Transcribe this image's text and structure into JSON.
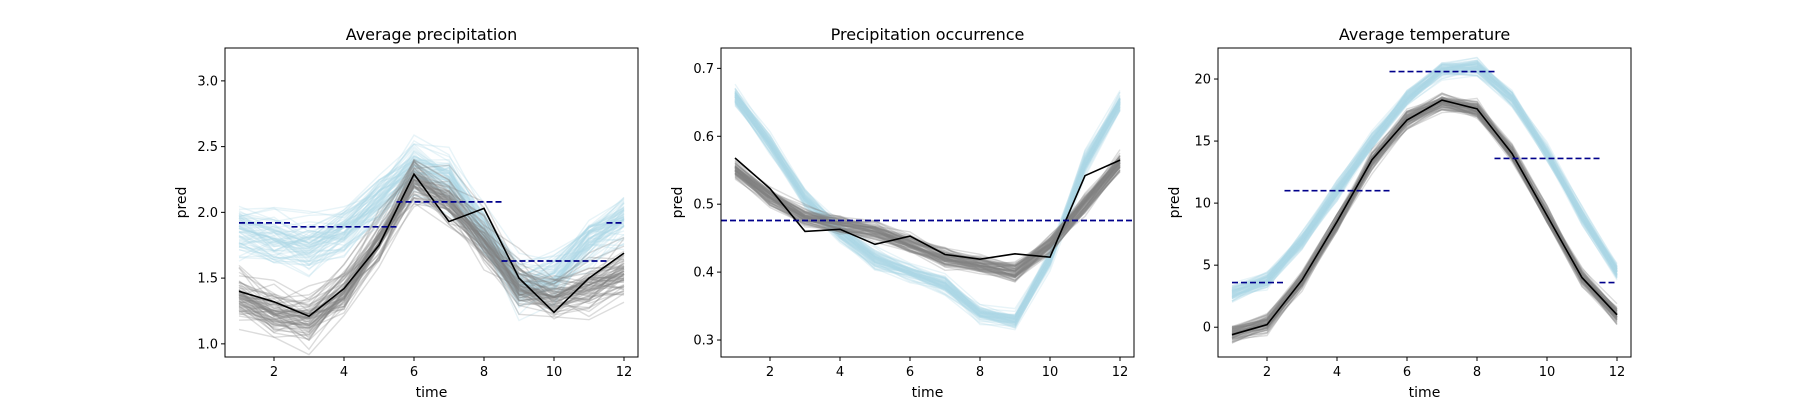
{
  "figure": {
    "background": "#ffffff"
  },
  "styles": {
    "ensemble_blue": "#add8e6",
    "ensemble_grey": "#808080",
    "observed_line": "#000000",
    "reference_dash": "#00008b"
  },
  "chart_data": [
    {
      "type": "line",
      "title": "Average precipitation",
      "xlabel": "time",
      "ylabel": "pred",
      "xlim": [
        0.6,
        12.4
      ],
      "ylim": [
        0.9,
        3.25
      ],
      "xticks": [
        2,
        4,
        6,
        8,
        10,
        12
      ],
      "yticks": [
        1.0,
        1.5,
        2.0,
        2.5,
        3.0
      ],
      "ytick_labels": [
        "1.0",
        "1.5",
        "2.0",
        "2.5",
        "3.0"
      ],
      "grid": false,
      "series": [
        {
          "role": "ensemble-light-blue",
          "color": "#add8e6",
          "x": [
            1,
            2,
            3,
            4,
            5,
            6,
            7,
            8,
            9,
            10,
            11,
            12
          ],
          "y": [
            1.88,
            1.8,
            1.75,
            1.85,
            2.1,
            2.35,
            2.25,
            1.85,
            1.45,
            1.5,
            1.8,
            1.95
          ]
        },
        {
          "role": "ensemble-grey",
          "color": "#808080",
          "x": [
            1,
            2,
            3,
            4,
            5,
            6,
            7,
            8,
            9,
            10,
            11,
            12
          ],
          "y": [
            1.38,
            1.25,
            1.2,
            1.4,
            1.8,
            2.25,
            2.1,
            1.8,
            1.45,
            1.35,
            1.45,
            1.55
          ]
        },
        {
          "role": "observed",
          "color": "#000000",
          "x": [
            1,
            2,
            3,
            4,
            5,
            6,
            7,
            8,
            9,
            10,
            11,
            12
          ],
          "y": [
            1.4,
            1.32,
            1.21,
            1.42,
            1.75,
            2.29,
            1.93,
            2.03,
            1.5,
            1.24,
            1.5,
            1.69
          ]
        }
      ],
      "reference_segments": [
        {
          "x": [
            1.0,
            2.5
          ],
          "y": 1.92
        },
        {
          "x": [
            2.5,
            5.5
          ],
          "y": 1.89
        },
        {
          "x": [
            5.5,
            8.5
          ],
          "y": 2.08
        },
        {
          "x": [
            8.5,
            11.5
          ],
          "y": 1.63
        },
        {
          "x": [
            11.5,
            12.0
          ],
          "y": 1.92
        }
      ]
    },
    {
      "type": "line",
      "title": "Precipitation occurrence",
      "xlabel": "time",
      "ylabel": "pred",
      "xlim": [
        0.6,
        12.4
      ],
      "ylim": [
        0.275,
        0.73
      ],
      "xticks": [
        2,
        4,
        6,
        8,
        10,
        12
      ],
      "yticks": [
        0.3,
        0.4,
        0.5,
        0.6,
        0.7
      ],
      "ytick_labels": [
        "0.3",
        "0.4",
        "0.5",
        "0.6",
        "0.7"
      ],
      "grid": false,
      "series": [
        {
          "role": "ensemble-light-blue",
          "color": "#add8e6",
          "x": [
            1,
            2,
            3,
            4,
            5,
            6,
            7,
            8,
            9,
            10,
            11,
            12
          ],
          "y": [
            0.66,
            0.59,
            0.51,
            0.46,
            0.42,
            0.4,
            0.38,
            0.34,
            0.33,
            0.42,
            0.56,
            0.65
          ]
        },
        {
          "role": "ensemble-grey",
          "color": "#808080",
          "x": [
            1,
            2,
            3,
            4,
            5,
            6,
            7,
            8,
            9,
            10,
            11,
            12
          ],
          "y": [
            0.55,
            0.51,
            0.48,
            0.47,
            0.46,
            0.44,
            0.42,
            0.41,
            0.4,
            0.44,
            0.5,
            0.56
          ]
        },
        {
          "role": "observed",
          "color": "#000000",
          "x": [
            1,
            2,
            3,
            4,
            5,
            6,
            7,
            8,
            9,
            10,
            11,
            12
          ],
          "y": [
            0.568,
            0.523,
            0.46,
            0.463,
            0.441,
            0.453,
            0.426,
            0.419,
            0.427,
            0.422,
            0.542,
            0.565
          ]
        }
      ],
      "reference_segments": [
        {
          "x": [
            0.6,
            12.4
          ],
          "y": 0.476
        }
      ]
    },
    {
      "type": "line",
      "title": "Average temperature",
      "xlabel": "time",
      "ylabel": "pred",
      "xlim": [
        0.6,
        12.4
      ],
      "ylim": [
        -2.4,
        22.5
      ],
      "xticks": [
        2,
        4,
        6,
        8,
        10,
        12
      ],
      "yticks": [
        0,
        5,
        10,
        15,
        20
      ],
      "ytick_labels": [
        "0",
        "5",
        "10",
        "15",
        "20"
      ],
      "grid": false,
      "series": [
        {
          "role": "ensemble-light-blue",
          "color": "#add8e6",
          "x": [
            1,
            2,
            3,
            4,
            5,
            6,
            7,
            8,
            9,
            10,
            11,
            12
          ],
          "y": [
            2.8,
            3.8,
            7.0,
            11.0,
            15.0,
            18.5,
            20.8,
            21.0,
            18.5,
            14.0,
            9.0,
            4.5
          ]
        },
        {
          "role": "ensemble-grey",
          "color": "#808080",
          "x": [
            1,
            2,
            3,
            4,
            5,
            6,
            7,
            8,
            9,
            10,
            11,
            12
          ],
          "y": [
            -0.5,
            0.3,
            3.8,
            8.5,
            13.5,
            16.8,
            18.2,
            17.6,
            14.0,
            9.0,
            4.0,
            1.0
          ]
        },
        {
          "role": "observed",
          "color": "#000000",
          "x": [
            1,
            2,
            3,
            4,
            5,
            6,
            7,
            8,
            9,
            10,
            11,
            12
          ],
          "y": [
            -0.6,
            0.2,
            3.8,
            8.5,
            13.5,
            16.7,
            18.3,
            17.6,
            14.0,
            9.0,
            4.0,
            1.0
          ]
        }
      ],
      "reference_segments": [
        {
          "x": [
            1.0,
            2.5
          ],
          "y": 3.6
        },
        {
          "x": [
            2.5,
            5.5
          ],
          "y": 11.0
        },
        {
          "x": [
            5.5,
            8.5
          ],
          "y": 20.6
        },
        {
          "x": [
            8.5,
            11.5
          ],
          "y": 13.6
        },
        {
          "x": [
            11.5,
            12.0
          ],
          "y": 3.6
        }
      ]
    }
  ]
}
